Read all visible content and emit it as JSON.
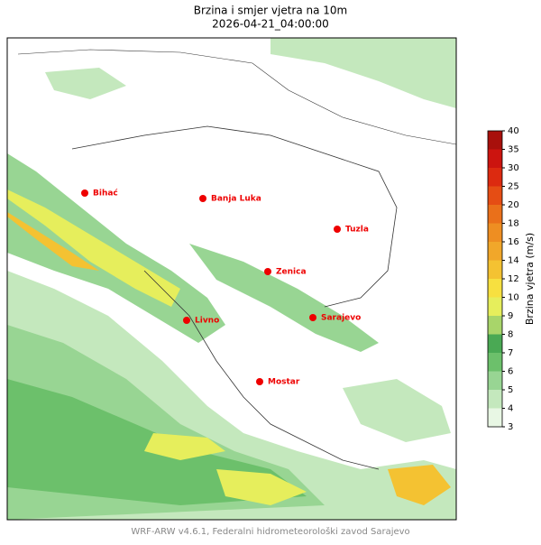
{
  "header": {
    "title": "Brzina i smjer vjetra na 10m",
    "subtitle": "2026-04-21_04:00:00"
  },
  "cities": [
    {
      "name": "Bihać"
    },
    {
      "name": "Banja Luka"
    },
    {
      "name": "Tuzla"
    },
    {
      "name": "Zenica"
    },
    {
      "name": "Livno"
    },
    {
      "name": "Sarajevo"
    },
    {
      "name": "Mostar"
    }
  ],
  "colorbar": {
    "label": "Brzina vjetra (m/s)",
    "ticks": [
      3,
      4,
      5,
      6,
      7,
      8,
      9,
      10,
      12,
      14,
      16,
      18,
      20,
      25,
      30,
      35,
      40
    ],
    "colors": [
      "#e8f7e4",
      "#c4e8bd",
      "#98d593",
      "#6cc06b",
      "#4aa954",
      "#a8d56a",
      "#e6ee5c",
      "#f7e040",
      "#f4c232",
      "#f1a72a",
      "#ee8e22",
      "#ea701a",
      "#e54d14",
      "#dc2a10",
      "#cc140f",
      "#a8100c"
    ]
  },
  "footer": "WRF-ARW v4.6.1, Federalni hidrometeorološki zavod Sarajevo"
}
